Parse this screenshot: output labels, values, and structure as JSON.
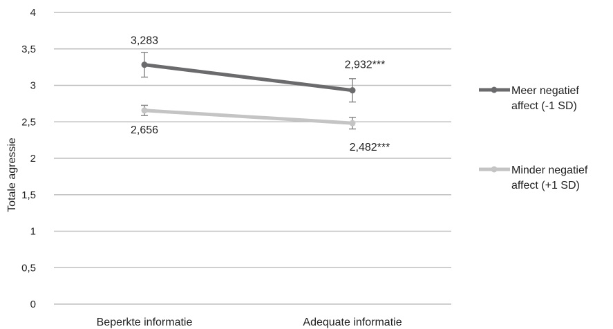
{
  "chart_data": {
    "type": "line",
    "title": "",
    "ylabel": "Totale agressie",
    "xlabel": "",
    "categories": [
      "Beperkte informatie",
      "Adequate informatie"
    ],
    "ylim": [
      0,
      4
    ],
    "yticks": [
      "0",
      "0,5",
      "1",
      "1,5",
      "2",
      "2,5",
      "3",
      "3,5",
      "4"
    ],
    "grid": true,
    "legend_position": "right",
    "series": [
      {
        "name": "Meer negatief affect (-1 SD)",
        "legend_lines": [
          "Meer negatief",
          "affect (-1 SD)"
        ],
        "color": "#6b6b6d",
        "values": [
          3.283,
          2.932
        ],
        "error": [
          0.17,
          0.16
        ],
        "labels": [
          "3,283",
          "2,932***"
        ]
      },
      {
        "name": "Minder negatief affect (+1 SD)",
        "legend_lines": [
          "Minder negatief",
          "affect (+1 SD)"
        ],
        "color": "#c4c4c4",
        "values": [
          2.656,
          2.482
        ],
        "error": [
          0.07,
          0.08
        ],
        "labels": [
          "2,656",
          "2,482***"
        ]
      }
    ]
  }
}
